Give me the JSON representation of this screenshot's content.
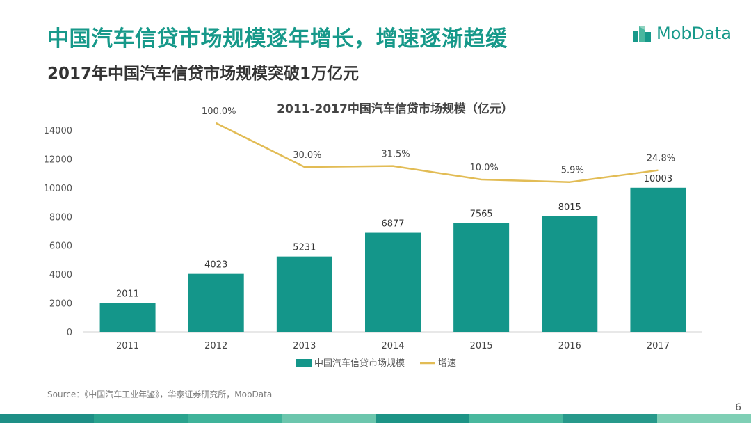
{
  "header": {
    "title": "中国汽车信贷市场规模逐年增长，增速逐渐趋缓",
    "subtitle": "2017年中国汽车信贷市场规模突破1万亿元"
  },
  "logo": {
    "text": "MobData",
    "icon": "mobdata-logo-icon",
    "color": "#17998a"
  },
  "chart_data": {
    "type": "bar",
    "title": "2011-2017中国汽车信贷市场规模（亿元）",
    "categories": [
      "2011",
      "2012",
      "2013",
      "2014",
      "2015",
      "2016",
      "2017"
    ],
    "series": [
      {
        "name": "中国汽车信贷市场规模",
        "type": "bar",
        "color": "#14968a",
        "values": [
          2011,
          4023,
          5231,
          6877,
          7565,
          8015,
          10003
        ],
        "labels": [
          "2011",
          "4023",
          "5231",
          "6877",
          "7565",
          "8015",
          "10003"
        ]
      },
      {
        "name": "增速",
        "type": "line",
        "color": "#e2bc55",
        "values": [
          null,
          100.0,
          30.0,
          31.5,
          10.0,
          5.9,
          24.8
        ],
        "labels": [
          "",
          "100.0%",
          "30.0%",
          "31.5%",
          "10.0%",
          "5.9%",
          "24.8%"
        ]
      }
    ],
    "yticks": [
      "0",
      "2000",
      "4000",
      "6000",
      "8000",
      "10000",
      "12000",
      "14000"
    ],
    "ylim": [
      0,
      14000
    ],
    "xlabel": "",
    "ylabel": "",
    "legend_position": "bottom",
    "grid": false
  },
  "footer": {
    "source": "Source：《中国汽车工业年鉴》，华泰证券研究所，MobData",
    "page_number": "6",
    "stripe_colors": [
      "#1e8f86",
      "#2aa38e",
      "#3fb39a",
      "#6cc6ad",
      "#1d9486",
      "#49b89e",
      "#27998b",
      "#7fcfb5"
    ]
  }
}
